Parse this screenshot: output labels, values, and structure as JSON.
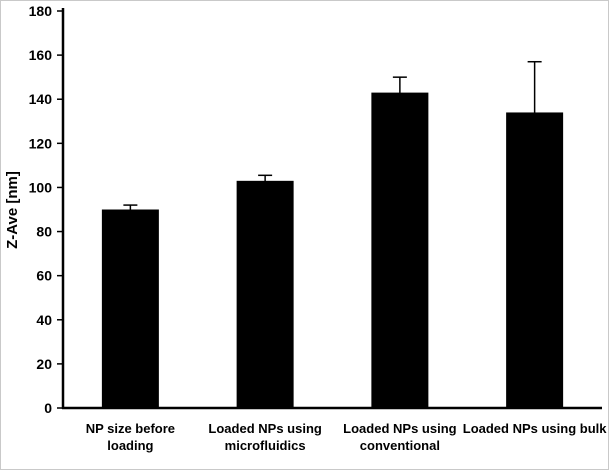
{
  "figure": {
    "background": "#ffffff",
    "border_color": "#c9c9c9"
  },
  "chart_data": {
    "type": "bar",
    "title": "",
    "xlabel": "",
    "ylabel": "Z-Ave [nm]",
    "categories": [
      "NP  size before\nloading",
      "Loaded NPs using\nmicrofluidics",
      "Loaded NPs using\nconventional",
      "Loaded NPs using bulk"
    ],
    "values": [
      90,
      103,
      143,
      134
    ],
    "error_bars": [
      2,
      2.5,
      7,
      23
    ],
    "ylim": [
      0,
      180
    ],
    "ytick_step": 20,
    "ytick_labels": [
      "0",
      "20",
      "40",
      "60",
      "80",
      "100",
      "120",
      "140",
      "160",
      "180"
    ],
    "bar_color": "#000000",
    "axis_color": "#000000",
    "grid": false,
    "legend": false
  }
}
